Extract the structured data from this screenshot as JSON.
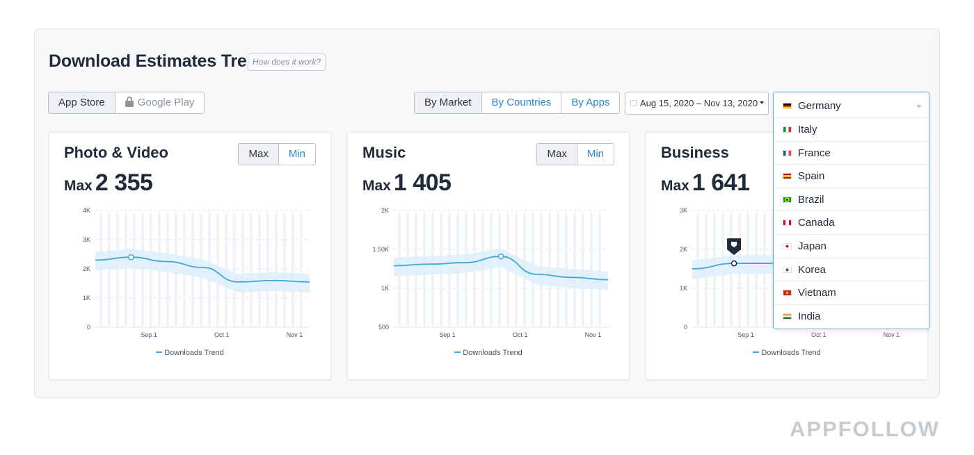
{
  "header": {
    "title": "Download Estimates Trend",
    "help_label": "How does it work?"
  },
  "store_toggle": {
    "app_store": "App Store",
    "google_play": "Google Play"
  },
  "view_toggle": {
    "by_market": "By Market",
    "by_countries": "By Countries",
    "by_apps": "By Apps"
  },
  "date_range": "Aug 15, 2020 – Nov 13, 2020",
  "country_dropdown": {
    "selected": "Germany",
    "options": [
      "Italy",
      "France",
      "Spain",
      "Brazil",
      "Canada",
      "Japan",
      "Korea",
      "Vietnam",
      "India"
    ]
  },
  "cards": [
    {
      "title": "Photo & Video",
      "max_label": "Max",
      "max_value": "2 355",
      "toggle_max": "Max",
      "toggle_min": "Min",
      "legend": "Downloads Trend"
    },
    {
      "title": "Music",
      "max_label": "Max",
      "max_value": "1 405",
      "toggle_max": "Max",
      "toggle_min": "Min",
      "legend": "Downloads Trend"
    },
    {
      "title": "Business",
      "max_label": "Max",
      "max_value": "1 641",
      "legend": "Downloads Trend"
    }
  ],
  "colors": {
    "accent": "#2c86c7",
    "line": "#3fa7dd",
    "band": "#dcedf9",
    "brand": "#c6cbd0"
  },
  "brand": "APPFOLLOW",
  "chart_data": [
    {
      "type": "line",
      "title": "Photo & Video",
      "series": [
        {
          "name": "Downloads Trend",
          "x": [
            "Aug 15",
            "Aug 27",
            "Sep 10",
            "Sep 25",
            "Oct 10",
            "Oct 25",
            "Nov 10"
          ],
          "values": [
            2300,
            2400,
            2250,
            2050,
            1550,
            1600,
            1550
          ]
        }
      ],
      "x_ticks": [
        "Sep 1",
        "Oct 1",
        "Nov 1"
      ],
      "y_ticks": [
        "0",
        "1K",
        "2K",
        "3K",
        "4K"
      ],
      "ylim": [
        0,
        4000
      ],
      "marker_index": 1
    },
    {
      "type": "line",
      "title": "Music",
      "series": [
        {
          "name": "Downloads Trend",
          "x": [
            "Aug 15",
            "Aug 27",
            "Sep 10",
            "Sep 25",
            "Oct 10",
            "Oct 25",
            "Nov 10"
          ],
          "values": [
            1290,
            1310,
            1330,
            1410,
            1180,
            1140,
            1110
          ]
        }
      ],
      "x_ticks": [
        "Sep 1",
        "Oct 1",
        "Nov 1"
      ],
      "y_ticks": [
        "500",
        "1K",
        "1.50K",
        "2K"
      ],
      "ylim": [
        500,
        2000
      ],
      "marker_index": 3
    },
    {
      "type": "line",
      "title": "Business",
      "series": [
        {
          "name": "Downloads Trend",
          "x": [
            "Aug 15",
            "Aug 27",
            "Sep 10",
            "Sep 25",
            "Oct 10"
          ],
          "values": [
            1500,
            1640,
            1640,
            1660,
            1660
          ]
        }
      ],
      "x_ticks": [
        "Sep 1",
        "Oct 1",
        "Nov 1"
      ],
      "y_ticks": [
        "0",
        "1K",
        "2K",
        "3K"
      ],
      "ylim": [
        0,
        3000
      ],
      "marker_index": 1,
      "pin_index": 1
    }
  ]
}
